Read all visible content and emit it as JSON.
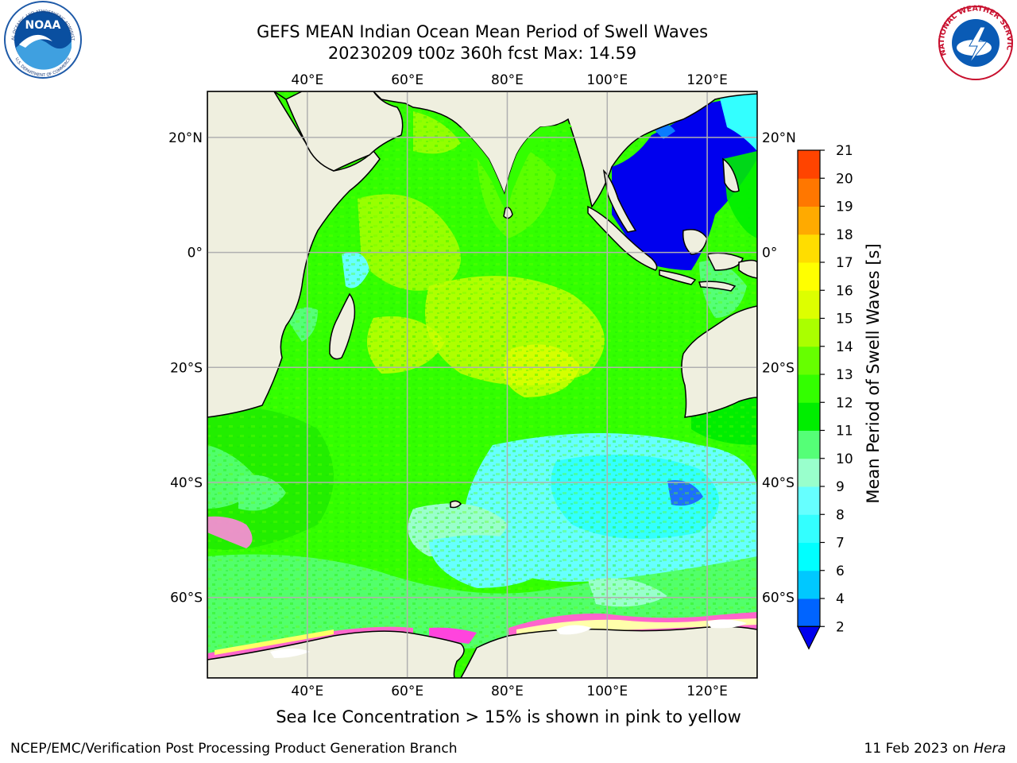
{
  "title": {
    "line1": "GEFS MEAN Indian Ocean Mean Period of Swell Waves",
    "line2": "20230209 t00z 360h fcst   Max: 14.59"
  },
  "logos": {
    "noaa_text": "NOAA",
    "noaa_ring_top": "NATIONAL OCEANIC AND ATMOSPHERIC ADMINISTRATION",
    "noaa_ring_bottom": "U.S. DEPARTMENT OF COMMERCE",
    "nws_ring": "NATIONAL WEATHER SERVICE"
  },
  "map": {
    "lon_labels": [
      "40°E",
      "60°E",
      "80°E",
      "100°E",
      "120°E"
    ],
    "lat_labels": [
      "20°N",
      "0°",
      "20°S",
      "40°S",
      "60°S"
    ],
    "lon_range": [
      20,
      130
    ],
    "lat_range": [
      -74,
      28
    ],
    "colors": {
      "land": "#efefdf",
      "ocean": "#33ff00",
      "grid": "#b0b0b0",
      "coast": "#000000"
    }
  },
  "colorbar": {
    "label": "Mean Period of Swell Waves [s]",
    "tick_labels": [
      "2",
      "4",
      "6",
      "7",
      "8",
      "9",
      "10",
      "11",
      "12",
      "13",
      "14",
      "15",
      "16",
      "17",
      "18",
      "19",
      "20",
      "21"
    ],
    "colors": [
      "#0064ff",
      "#00c8ff",
      "#00ffff",
      "#33ffff",
      "#66ffff",
      "#99ffcc",
      "#55ff77",
      "#00ee00",
      "#33ff00",
      "#66ff00",
      "#aaff00",
      "#ddff00",
      "#ffff00",
      "#ffdd00",
      "#ffaa00",
      "#ff7700",
      "#ff4400",
      "#ff1100"
    ],
    "under_color": "#0000ee"
  },
  "footer": {
    "note": "Sea Ice Concentration > 15% is shown in pink to yellow",
    "credit": "NCEP/EMC/Verification Post Processing Product Generation Branch",
    "date": "11 Feb 2023 on ",
    "host": "Hera"
  }
}
